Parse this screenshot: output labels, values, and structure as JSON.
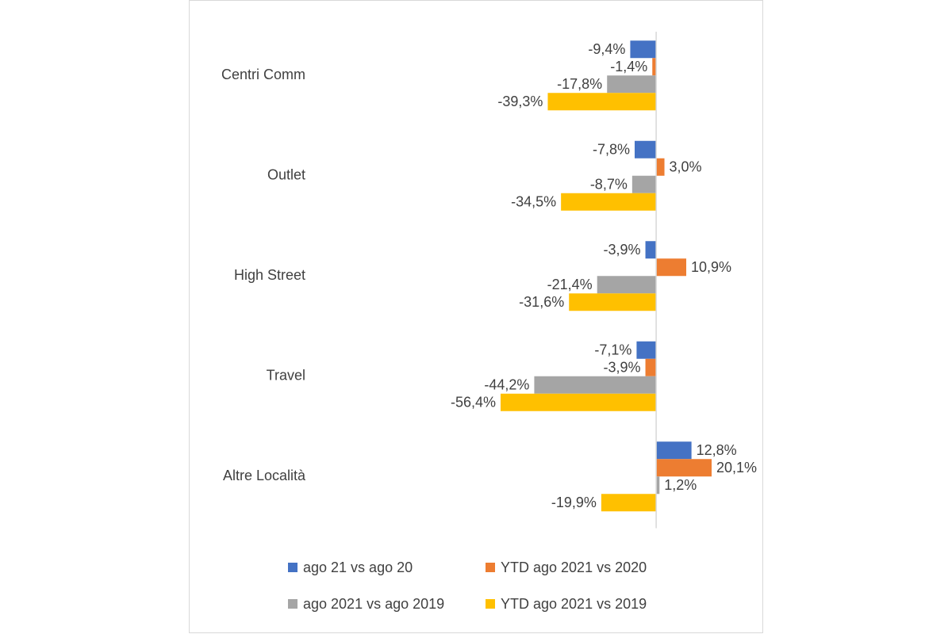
{
  "chart_data": {
    "type": "barh",
    "categories": [
      "Centri Comm",
      "Outlet",
      "High Street",
      "Travel",
      "Altre Località"
    ],
    "series": [
      {
        "name": "ago 21 vs ago 20",
        "color": "#4472c4",
        "values": [
          -9.4,
          -7.8,
          -3.9,
          -7.1,
          12.8
        ],
        "value_labels": [
          "-9,4%",
          "-7,8%",
          "-3,9%",
          "-7,1%",
          "12,8%"
        ]
      },
      {
        "name": "YTD ago 2021 vs 2020",
        "color": "#ed7d31",
        "values": [
          -1.4,
          3.0,
          10.9,
          -3.9,
          20.1
        ],
        "value_labels": [
          "-1,4%",
          "3,0%",
          "10,9%",
          "-3,9%",
          "20,1%"
        ]
      },
      {
        "name": "ago 2021 vs ago 2019",
        "color": "#a5a5a5",
        "values": [
          -17.8,
          -8.7,
          -21.4,
          -44.2,
          1.2
        ],
        "value_labels": [
          "-17,8%",
          "-8,7%",
          "-21,4%",
          "-44,2%",
          "1,2%"
        ]
      },
      {
        "name": "YTD ago 2021 vs 2019",
        "color": "#ffc000",
        "values": [
          -39.3,
          -34.5,
          -31.6,
          -56.4,
          -19.9
        ],
        "value_labels": [
          "-39,3%",
          "-34,5%",
          "-31,6%",
          "-56,4%",
          "-19,9%"
        ]
      }
    ],
    "legend": "bottom"
  }
}
